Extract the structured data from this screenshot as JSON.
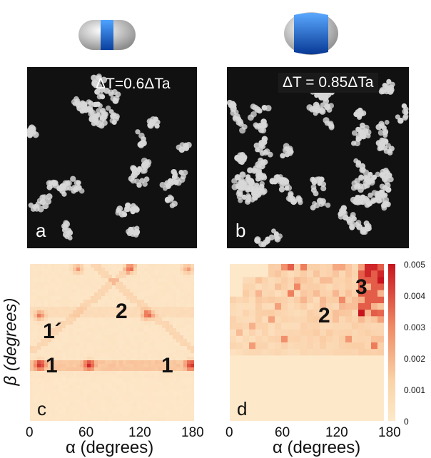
{
  "panels": {
    "a": {
      "letter": "a",
      "temp": "ΔT=0.6ΔTa"
    },
    "b": {
      "letter": "b",
      "temp": "ΔT = 0.85ΔTa"
    },
    "c": {
      "letter": "c"
    },
    "d": {
      "letter": "d"
    }
  },
  "annotations_c": {
    "label_1prime": "1´",
    "label_2": "2",
    "label_1_left": "1",
    "label_1_right": "1"
  },
  "annotations_d": {
    "label_2": "2",
    "label_3": "3"
  },
  "x_axis": {
    "label": "α (degrees)",
    "ticks": [
      "0",
      "60",
      "120",
      "180"
    ]
  },
  "y_axis": {
    "label": "β (degrees)"
  },
  "colorbar": {
    "ticks": [
      "0.005",
      "0.004",
      "0.003",
      "0.002",
      "0.001",
      "0"
    ]
  },
  "colors": {
    "low": "#fde6c4",
    "mid": "#f5a57a",
    "high": "#c8141e",
    "capsule_blue": "#1e6fd8"
  }
}
